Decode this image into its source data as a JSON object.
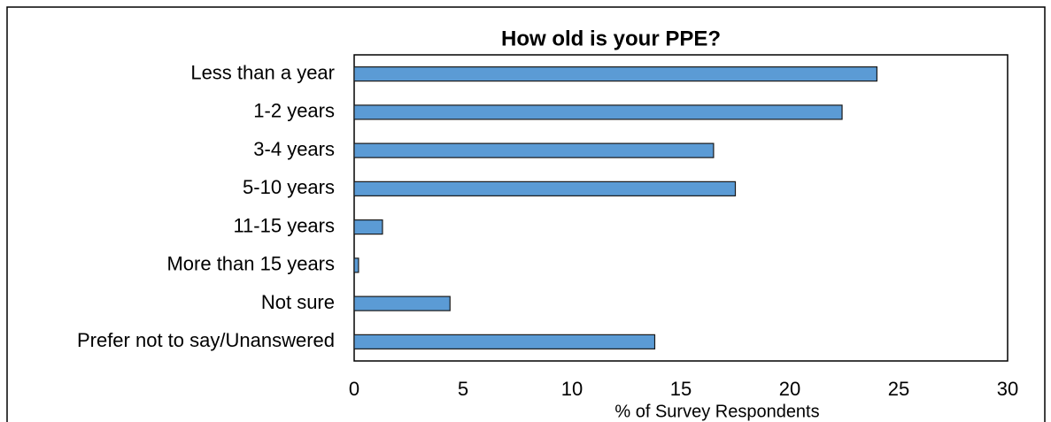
{
  "chart_data": {
    "type": "bar",
    "orientation": "horizontal",
    "title": "How old is your PPE?",
    "x_label": "% of Survey Respondents",
    "categories": [
      "Less than a year",
      "1-2 years",
      "3-4 years",
      "5-10 years",
      "11-15 years",
      "More than 15 years",
      "Not sure",
      "Prefer not to say/Unanswered"
    ],
    "values": [
      24.0,
      22.4,
      16.5,
      17.5,
      1.3,
      0.2,
      4.4,
      13.8
    ],
    "color": "#5b9bd5",
    "xlim": [
      0,
      30
    ],
    "xticks": [
      0,
      5,
      10,
      15,
      20,
      25,
      30
    ],
    "grid": false
  }
}
